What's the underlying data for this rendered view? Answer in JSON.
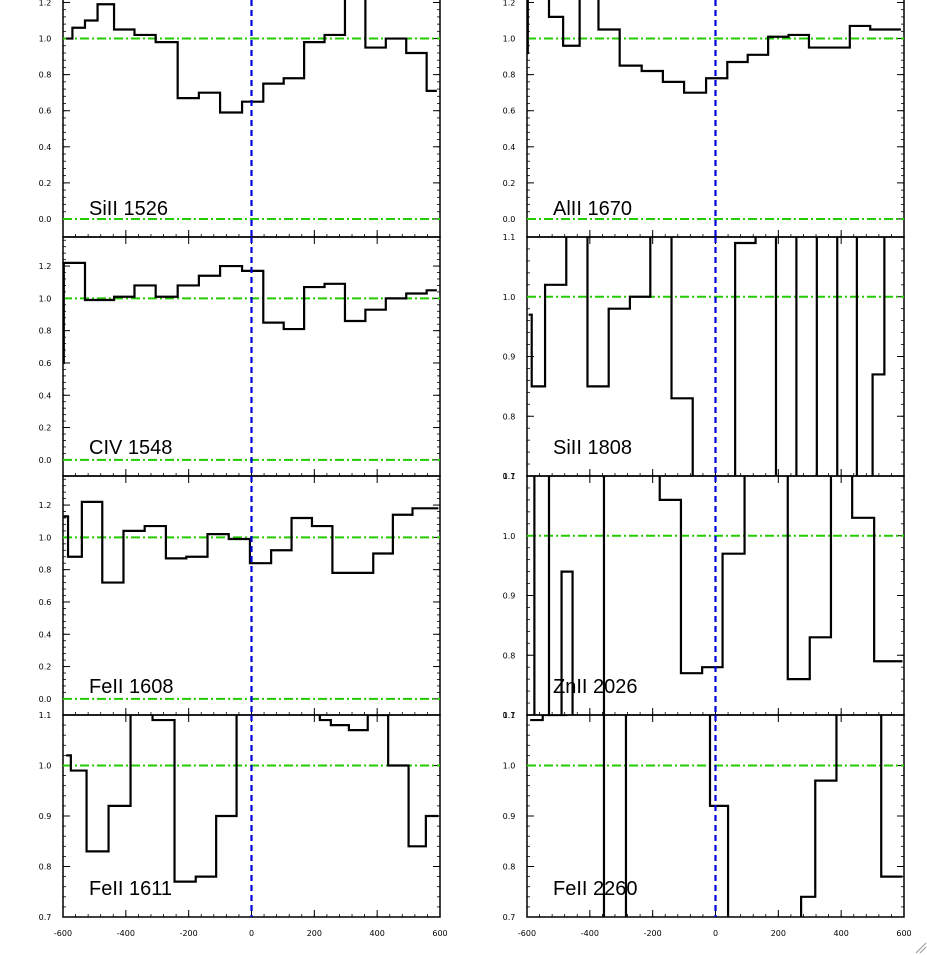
{
  "chart_data": {
    "type": "line",
    "style": {
      "spectrum_color": "#000000",
      "continuum_color": "#22cc00",
      "zero_velocity_color": "#0000dd",
      "background": "#ffffff"
    },
    "x_ticks": [
      -600,
      -400,
      -200,
      0,
      200,
      400,
      600
    ],
    "x_tick_labels": [
      "-600",
      "-400",
      "-200",
      "0",
      "200",
      "400",
      "600"
    ],
    "panels": [
      {
        "name": "SiII 1526",
        "label": "SiII 1526",
        "xlim": [
          -600,
          600
        ],
        "ylim": [
          -0.1,
          1.38
        ],
        "yticks": [
          0.0,
          0.2,
          0.4,
          0.6,
          0.8,
          1.0,
          1.2
        ],
        "ytick_labels": [
          "0.0",
          "0.2",
          "0.4",
          "0.6",
          "0.8",
          "1.0",
          "1.2"
        ],
        "hlines": [
          1.0,
          0.0
        ],
        "show_vline": true,
        "show_xtick_labels": false,
        "series": [
          {
            "x": -590,
            "y": 1.0
          },
          {
            "x": -550,
            "y": 1.06
          },
          {
            "x": -510,
            "y": 1.1
          },
          {
            "x": -470,
            "y": 1.19
          },
          {
            "x": -405,
            "y": 1.05
          },
          {
            "x": -340,
            "y": 1.02
          },
          {
            "x": -270,
            "y": 0.98
          },
          {
            "x": -200,
            "y": 0.67
          },
          {
            "x": -135,
            "y": 0.7
          },
          {
            "x": -65,
            "y": 0.59
          },
          {
            "x": 5,
            "y": 0.65
          },
          {
            "x": 70,
            "y": 0.75
          },
          {
            "x": 135,
            "y": 0.78
          },
          {
            "x": 200,
            "y": 0.98
          },
          {
            "x": 265,
            "y": 1.02
          },
          {
            "x": 330,
            "y": 1.22
          },
          {
            "x": 395,
            "y": 0.95
          },
          {
            "x": 460,
            "y": 1.0
          },
          {
            "x": 525,
            "y": 0.92
          },
          {
            "x": 590,
            "y": 0.71
          }
        ]
      },
      {
        "name": "AlII 1670",
        "label": "AlII 1670",
        "xlim": [
          -600,
          600
        ],
        "ylim": [
          -0.1,
          1.38
        ],
        "yticks": [
          0.0,
          0.2,
          0.4,
          0.6,
          0.8,
          1.0,
          1.2
        ],
        "ytick_labels": [
          "0.0",
          "0.2",
          "0.4",
          "0.6",
          "0.8",
          "1.0",
          "1.2"
        ],
        "hlines": [
          1.0,
          0.0
        ],
        "show_vline": true,
        "show_xtick_labels": false,
        "series": [
          {
            "x": -600,
            "y": 0.92
          },
          {
            "x": -595,
            "y": 1.36
          },
          {
            "x": -550,
            "y": 1.36
          },
          {
            "x": -510,
            "y": 1.12
          },
          {
            "x": -460,
            "y": 0.96
          },
          {
            "x": -405,
            "y": 1.22
          },
          {
            "x": -340,
            "y": 1.05
          },
          {
            "x": -270,
            "y": 0.85
          },
          {
            "x": -200,
            "y": 0.82
          },
          {
            "x": -135,
            "y": 0.76
          },
          {
            "x": -65,
            "y": 0.7
          },
          {
            "x": 5,
            "y": 0.78
          },
          {
            "x": 70,
            "y": 0.87
          },
          {
            "x": 135,
            "y": 0.91
          },
          {
            "x": 200,
            "y": 1.01
          },
          {
            "x": 265,
            "y": 1.02
          },
          {
            "x": 330,
            "y": 0.95
          },
          {
            "x": 395,
            "y": 0.95
          },
          {
            "x": 460,
            "y": 1.07
          },
          {
            "x": 525,
            "y": 1.05
          },
          {
            "x": 590,
            "y": 1.05
          }
        ]
      },
      {
        "name": "CIV 1548",
        "label": "CIV 1548",
        "xlim": [
          -600,
          600
        ],
        "ylim": [
          -0.1,
          1.38
        ],
        "yticks": [
          0.0,
          0.2,
          0.4,
          0.6,
          0.8,
          1.0,
          1.2
        ],
        "ytick_labels": [
          "0.0",
          "0.2",
          "0.4",
          "0.6",
          "0.8",
          "1.0",
          "1.2"
        ],
        "hlines": [
          1.0,
          0.0
        ],
        "show_vline": true,
        "show_xtick_labels": false,
        "series": [
          {
            "x": -600,
            "y": 0.6
          },
          {
            "x": -595,
            "y": 1.22
          },
          {
            "x": -550,
            "y": 1.22
          },
          {
            "x": -510,
            "y": 0.99
          },
          {
            "x": -470,
            "y": 0.99
          },
          {
            "x": -405,
            "y": 1.01
          },
          {
            "x": -340,
            "y": 1.08
          },
          {
            "x": -270,
            "y": 1.01
          },
          {
            "x": -200,
            "y": 1.08
          },
          {
            "x": -135,
            "y": 1.14
          },
          {
            "x": -65,
            "y": 1.2
          },
          {
            "x": 5,
            "y": 1.17
          },
          {
            "x": 70,
            "y": 0.85
          },
          {
            "x": 135,
            "y": 0.81
          },
          {
            "x": 200,
            "y": 1.07
          },
          {
            "x": 265,
            "y": 1.09
          },
          {
            "x": 330,
            "y": 0.86
          },
          {
            "x": 395,
            "y": 0.93
          },
          {
            "x": 460,
            "y": 1.0
          },
          {
            "x": 525,
            "y": 1.03
          },
          {
            "x": 590,
            "y": 1.05
          }
        ]
      },
      {
        "name": "SiII 1808",
        "label": "SiII 1808",
        "xlim": [
          -600,
          600
        ],
        "ylim": [
          0.7,
          1.1
        ],
        "yticks": [
          0.7,
          0.8,
          0.9,
          1.0,
          1.1
        ],
        "ytick_labels": [
          "0.7",
          "0.8",
          "0.9",
          "1.0",
          "1.1"
        ],
        "hlines": [
          1.0
        ],
        "show_vline": true,
        "show_xtick_labels": false,
        "series": [
          {
            "x": -595,
            "y": 0.97
          },
          {
            "x": -575,
            "y": 0.85
          },
          {
            "x": -510,
            "y": 1.02
          },
          {
            "x": -440,
            "y": 1.15
          },
          {
            "x": -375,
            "y": 0.85
          },
          {
            "x": -305,
            "y": 0.98
          },
          {
            "x": -240,
            "y": 1.0
          },
          {
            "x": -175,
            "y": 1.15
          },
          {
            "x": -105,
            "y": 0.83
          },
          {
            "x": -40,
            "y": 0.5
          },
          {
            "x": 30,
            "y": 0.5
          },
          {
            "x": 95,
            "y": 1.09
          },
          {
            "x": 160,
            "y": 1.15
          },
          {
            "x": 225,
            "y": 0.5
          },
          {
            "x": 290,
            "y": 1.15
          },
          {
            "x": 355,
            "y": 0.5
          },
          {
            "x": 420,
            "y": 1.15
          },
          {
            "x": 480,
            "y": 0.5
          },
          {
            "x": 520,
            "y": 0.87
          },
          {
            "x": 555,
            "y": 1.15
          },
          {
            "x": 590,
            "y": 1.15
          }
        ]
      },
      {
        "name": "FeII 1608",
        "label": "FeII 1608",
        "xlim": [
          -600,
          600
        ],
        "ylim": [
          -0.1,
          1.38
        ],
        "yticks": [
          0.0,
          0.2,
          0.4,
          0.6,
          0.8,
          1.0,
          1.2
        ],
        "ytick_labels": [
          "0.0",
          "0.2",
          "0.4",
          "0.6",
          "0.8",
          "1.0",
          "1.2"
        ],
        "hlines": [
          1.0,
          0.0
        ],
        "show_vline": true,
        "show_xtick_labels": false,
        "series": [
          {
            "x": -598,
            "y": 1.13
          },
          {
            "x": -570,
            "y": 0.88
          },
          {
            "x": -510,
            "y": 1.22
          },
          {
            "x": -440,
            "y": 0.72
          },
          {
            "x": -375,
            "y": 1.04
          },
          {
            "x": -305,
            "y": 1.07
          },
          {
            "x": -240,
            "y": 0.87
          },
          {
            "x": -175,
            "y": 0.88
          },
          {
            "x": -105,
            "y": 1.02
          },
          {
            "x": -40,
            "y": 0.99
          },
          {
            "x": 30,
            "y": 0.84
          },
          {
            "x": 95,
            "y": 0.92
          },
          {
            "x": 160,
            "y": 1.12
          },
          {
            "x": 225,
            "y": 1.07
          },
          {
            "x": 290,
            "y": 0.78
          },
          {
            "x": 355,
            "y": 0.78
          },
          {
            "x": 420,
            "y": 0.9
          },
          {
            "x": 480,
            "y": 1.14
          },
          {
            "x": 545,
            "y": 1.18
          },
          {
            "x": 595,
            "y": 1.18
          }
        ]
      },
      {
        "name": "ZnII 2026",
        "label": "ZnII 2026",
        "xlim": [
          -600,
          600
        ],
        "ylim": [
          0.7,
          1.1
        ],
        "yticks": [
          0.7,
          0.8,
          0.9,
          1.0,
          1.1
        ],
        "ytick_labels": [
          "0.7",
          "0.8",
          "0.9",
          "1.0",
          "1.1"
        ],
        "hlines": [
          1.0
        ],
        "show_vline": true,
        "show_xtick_labels": false,
        "series": [
          {
            "x": -598,
            "y": 0.65
          },
          {
            "x": -555,
            "y": 1.15
          },
          {
            "x": -505,
            "y": 0.65
          },
          {
            "x": -475,
            "y": 0.94
          },
          {
            "x": -435,
            "y": 0.65
          },
          {
            "x": -370,
            "y": 0.65
          },
          {
            "x": -340,
            "y": 1.15
          },
          {
            "x": -210,
            "y": 1.15
          },
          {
            "x": -145,
            "y": 1.06
          },
          {
            "x": -75,
            "y": 0.77
          },
          {
            "x": -10,
            "y": 0.78
          },
          {
            "x": 55,
            "y": 0.97
          },
          {
            "x": 130,
            "y": 1.15
          },
          {
            "x": 195,
            "y": 1.15
          },
          {
            "x": 265,
            "y": 0.76
          },
          {
            "x": 335,
            "y": 0.83
          },
          {
            "x": 400,
            "y": 1.15
          },
          {
            "x": 470,
            "y": 1.03
          },
          {
            "x": 540,
            "y": 0.79
          },
          {
            "x": 595,
            "y": 0.79
          }
        ]
      },
      {
        "name": "FeII 1611",
        "label": "FeII 1611",
        "xlim": [
          -600,
          600
        ],
        "ylim": [
          0.7,
          1.1
        ],
        "yticks": [
          0.7,
          0.8,
          0.9,
          1.0,
          1.1
        ],
        "ytick_labels": [
          "0.7",
          "0.8",
          "0.9",
          "1.0",
          "1.1"
        ],
        "hlines": [
          1.0
        ],
        "show_vline": true,
        "show_xtick_labels": true,
        "series": [
          {
            "x": -590,
            "y": 1.02
          },
          {
            "x": -560,
            "y": 0.99
          },
          {
            "x": -490,
            "y": 0.83
          },
          {
            "x": -420,
            "y": 0.92
          },
          {
            "x": -350,
            "y": 1.15
          },
          {
            "x": -280,
            "y": 1.09
          },
          {
            "x": -210,
            "y": 0.77
          },
          {
            "x": -145,
            "y": 0.78
          },
          {
            "x": -80,
            "y": 0.9
          },
          {
            "x": -15,
            "y": 1.15
          },
          {
            "x": 45,
            "y": 1.15
          },
          {
            "x": 210,
            "y": 1.15
          },
          {
            "x": 225,
            "y": 1.09
          },
          {
            "x": 280,
            "y": 1.08
          },
          {
            "x": 340,
            "y": 1.07
          },
          {
            "x": 400,
            "y": 1.1
          },
          {
            "x": 470,
            "y": 1.0
          },
          {
            "x": 530,
            "y": 0.84
          },
          {
            "x": 580,
            "y": 0.9
          },
          {
            "x": 595,
            "y": 0.9
          }
        ]
      },
      {
        "name": "FeII 2260",
        "label": "FeII 2260",
        "xlim": [
          -600,
          600
        ],
        "ylim": [
          0.7,
          1.1
        ],
        "yticks": [
          0.7,
          0.8,
          0.9,
          1.0,
          1.1
        ],
        "ytick_labels": [
          "0.7",
          "0.8",
          "0.9",
          "1.0",
          "1.1"
        ],
        "hlines": [
          1.0
        ],
        "show_vline": true,
        "show_xtick_labels": true,
        "series": [
          {
            "x": -590,
            "y": 1.09
          },
          {
            "x": -510,
            "y": 1.1
          },
          {
            "x": -440,
            "y": 1.15
          },
          {
            "x": -370,
            "y": 1.15
          },
          {
            "x": -340,
            "y": 0.65
          },
          {
            "x": -300,
            "y": 0.65
          },
          {
            "x": -270,
            "y": 1.15
          },
          {
            "x": -40,
            "y": 1.15
          },
          {
            "x": 5,
            "y": 0.92
          },
          {
            "x": 75,
            "y": 0.65
          },
          {
            "x": 260,
            "y": 0.65
          },
          {
            "x": 285,
            "y": 0.74
          },
          {
            "x": 350,
            "y": 0.97
          },
          {
            "x": 420,
            "y": 1.15
          },
          {
            "x": 500,
            "y": 1.15
          },
          {
            "x": 555,
            "y": 0.78
          },
          {
            "x": 595,
            "y": 0.78
          }
        ]
      }
    ]
  }
}
